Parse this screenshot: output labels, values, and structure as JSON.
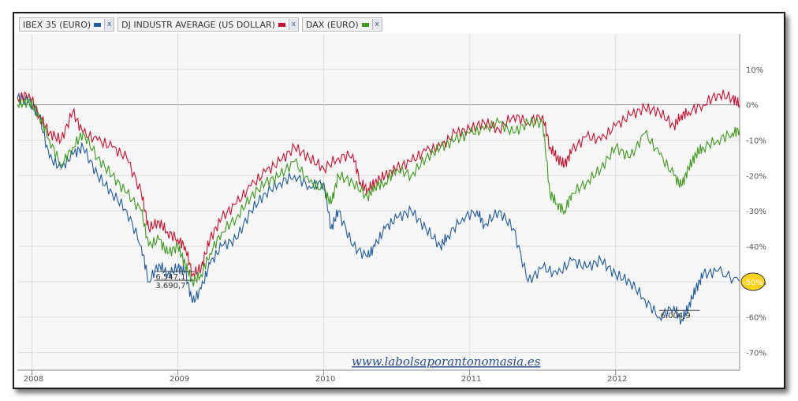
{
  "legend": [
    {
      "label": "IBEX 35 (EURO)",
      "color": "#1f5a9e",
      "close": "x"
    },
    {
      "label": "DJ INDUSTR AVERAGE (US DOLLAR)",
      "color": "#c8102e",
      "close": "x"
    },
    {
      "label": "DAX (EURO)",
      "color": "#3d9a1c",
      "close": "x"
    }
  ],
  "watermark": "www.labolsaporantonomasia.es",
  "chart_data": {
    "type": "line",
    "y_unit": "%",
    "ylim": [
      -75,
      20
    ],
    "y_ticks": [
      10,
      0,
      -10,
      -20,
      -30,
      -40,
      -50,
      -60,
      -70
    ],
    "y_tick_labels": [
      "10%",
      "0%",
      "-10%",
      "-20%",
      "-30%",
      "-40%",
      "-50%",
      "-60%",
      "-70%"
    ],
    "xlim": [
      2007.9,
      2012.85
    ],
    "x_ticks": [
      2008,
      2009,
      2010,
      2011,
      2012
    ],
    "x_tick_labels": [
      "2008",
      "2009",
      "2010",
      "2011",
      "2012"
    ],
    "grid": true,
    "current_value_label": "-50%",
    "series": [
      {
        "name": "IBEX 35 (EURO)",
        "color": "#1f5a9e",
        "x": [
          2007.9,
          2007.98,
          2008.05,
          2008.12,
          2008.2,
          2008.28,
          2008.35,
          2008.45,
          2008.55,
          2008.65,
          2008.75,
          2008.8,
          2008.87,
          2008.93,
          2009.0,
          2009.05,
          2009.1,
          2009.16,
          2009.22,
          2009.3,
          2009.4,
          2009.5,
          2009.6,
          2009.7,
          2009.8,
          2009.9,
          2010.0,
          2010.05,
          2010.1,
          2010.2,
          2010.3,
          2010.35,
          2010.42,
          2010.5,
          2010.6,
          2010.7,
          2010.8,
          2010.85,
          2010.95,
          2011.05,
          2011.1,
          2011.2,
          2011.3,
          2011.4,
          2011.5,
          2011.6,
          2011.7,
          2011.8,
          2011.9,
          2012.0,
          2012.1,
          2012.2,
          2012.3,
          2012.4,
          2012.45,
          2012.5,
          2012.55,
          2012.6,
          2012.7,
          2012.85
        ],
        "y": [
          2,
          1,
          -3,
          -15,
          -18,
          -14,
          -12,
          -20,
          -25,
          -30,
          -40,
          -50,
          -45,
          -48,
          -46,
          -47,
          -56,
          -52,
          -45,
          -40,
          -38,
          -30,
          -25,
          -22,
          -20,
          -23,
          -22,
          -35,
          -30,
          -40,
          -43,
          -40,
          -35,
          -32,
          -30,
          -35,
          -40,
          -37,
          -32,
          -30,
          -34,
          -30,
          -35,
          -50,
          -46,
          -48,
          -44,
          -46,
          -44,
          -48,
          -50,
          -55,
          -60,
          -57,
          -61,
          -57,
          -52,
          -48,
          -47,
          -50
        ]
      },
      {
        "name": "DJ INDUSTR AVERAGE (US DOLLAR)",
        "color": "#c8102e",
        "x": [
          2007.9,
          2007.98,
          2008.05,
          2008.12,
          2008.2,
          2008.28,
          2008.35,
          2008.45,
          2008.55,
          2008.65,
          2008.75,
          2008.8,
          2008.87,
          2008.93,
          2009.0,
          2009.05,
          2009.1,
          2009.16,
          2009.22,
          2009.3,
          2009.4,
          2009.5,
          2009.6,
          2009.7,
          2009.8,
          2009.9,
          2010.0,
          2010.1,
          2010.2,
          2010.25,
          2010.3,
          2010.35,
          2010.42,
          2010.5,
          2010.6,
          2010.7,
          2010.8,
          2010.9,
          2011.0,
          2011.1,
          2011.2,
          2011.3,
          2011.4,
          2011.5,
          2011.55,
          2011.6,
          2011.65,
          2011.7,
          2011.8,
          2011.9,
          2012.0,
          2012.1,
          2012.2,
          2012.3,
          2012.4,
          2012.45,
          2012.5,
          2012.6,
          2012.7,
          2012.8,
          2012.85
        ],
        "y": [
          2,
          3,
          -3,
          -8,
          -10,
          -2,
          -8,
          -10,
          -12,
          -15,
          -25,
          -35,
          -33,
          -36,
          -38,
          -40,
          -48,
          -46,
          -38,
          -32,
          -28,
          -23,
          -19,
          -16,
          -12,
          -15,
          -18,
          -15,
          -14,
          -22,
          -24,
          -22,
          -20,
          -18,
          -16,
          -13,
          -12,
          -8,
          -7,
          -5,
          -7,
          -3,
          -5,
          -3,
          -12,
          -15,
          -17,
          -13,
          -9,
          -10,
          -6,
          -3,
          -1,
          -2,
          -6,
          -3,
          -2,
          0,
          3,
          2,
          0
        ]
      },
      {
        "name": "DAX (EURO)",
        "color": "#3d9a1c",
        "x": [
          2007.9,
          2007.98,
          2008.05,
          2008.12,
          2008.2,
          2008.28,
          2008.35,
          2008.45,
          2008.55,
          2008.65,
          2008.75,
          2008.8,
          2008.87,
          2008.93,
          2009.0,
          2009.05,
          2009.1,
          2009.16,
          2009.22,
          2009.3,
          2009.4,
          2009.5,
          2009.6,
          2009.7,
          2009.8,
          2009.9,
          2010.0,
          2010.05,
          2010.1,
          2010.2,
          2010.3,
          2010.35,
          2010.42,
          2010.5,
          2010.6,
          2010.7,
          2010.8,
          2010.9,
          2011.0,
          2011.1,
          2011.2,
          2011.3,
          2011.4,
          2011.5,
          2011.55,
          2011.6,
          2011.65,
          2011.7,
          2011.8,
          2011.9,
          2012.0,
          2012.1,
          2012.2,
          2012.3,
          2012.4,
          2012.45,
          2012.5,
          2012.55,
          2012.6,
          2012.7,
          2012.8,
          2012.85
        ],
        "y": [
          0,
          1,
          -3,
          -10,
          -17,
          -12,
          -8,
          -15,
          -20,
          -25,
          -30,
          -40,
          -38,
          -42,
          -40,
          -45,
          -50,
          -48,
          -42,
          -36,
          -32,
          -26,
          -22,
          -20,
          -16,
          -22,
          -24,
          -28,
          -20,
          -22,
          -26,
          -23,
          -22,
          -18,
          -20,
          -15,
          -12,
          -10,
          -8,
          -7,
          -5,
          -8,
          -5,
          -5,
          -25,
          -28,
          -30,
          -25,
          -22,
          -18,
          -12,
          -15,
          -8,
          -14,
          -20,
          -23,
          -18,
          -14,
          -12,
          -10,
          -8,
          -7
        ]
      }
    ],
    "annotations": [
      {
        "label": "6.547,1",
        "x": 2008.88,
        "y": -50
      },
      {
        "label": "3.690,7",
        "x": 2008.88,
        "y": -52.5
      },
      {
        "label": "6.004,9",
        "x": 2012.34,
        "y": -61
      }
    ]
  }
}
